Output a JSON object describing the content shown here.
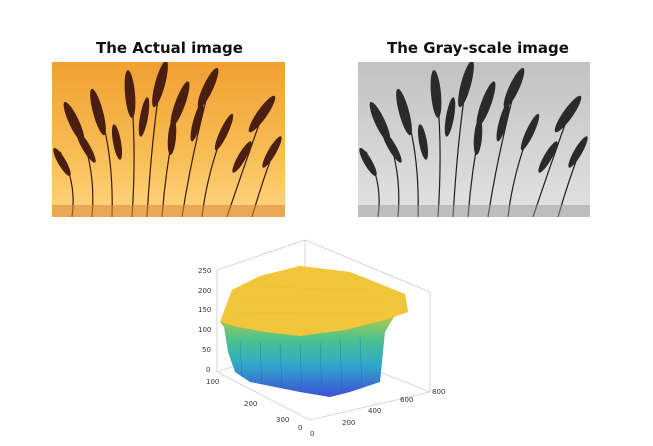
{
  "panels": {
    "left_title": "The Actual image",
    "right_title": "The Gray-scale image"
  },
  "surface_plot": {
    "z_ticks": [
      "250",
      "200",
      "150",
      "100",
      "50",
      "0"
    ],
    "y_ticks": [
      "0",
      "100",
      "200",
      "300"
    ],
    "x_ticks": [
      "0",
      "200",
      "400",
      "600",
      "800"
    ]
  },
  "colors": {
    "sunset_top": "#f2a33a",
    "sunset_bottom": "#ffd27a",
    "gray_bg": "#d9d9d9",
    "surface_top": "#f2c53a",
    "surface_mid": "#3cbfa0",
    "surface_low": "#3b5fd8"
  }
}
